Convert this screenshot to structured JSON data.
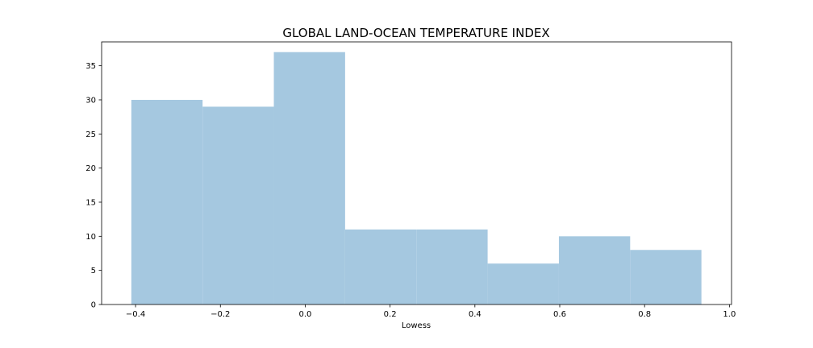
{
  "chart_data": {
    "type": "bar",
    "title": "GLOBAL LAND-OCEAN TEMPERATURE INDEX",
    "xlabel": "Lowess",
    "ylabel": "",
    "bins": [
      {
        "x0": -0.41,
        "x1": -0.242,
        "count": 30
      },
      {
        "x0": -0.242,
        "x1": -0.074,
        "count": 29
      },
      {
        "x0": -0.074,
        "x1": 0.094,
        "count": 37
      },
      {
        "x0": 0.094,
        "x1": 0.262,
        "count": 11
      },
      {
        "x0": 0.262,
        "x1": 0.43,
        "count": 11
      },
      {
        "x0": 0.43,
        "x1": 0.598,
        "count": 6
      },
      {
        "x0": 0.598,
        "x1": 0.766,
        "count": 10
      },
      {
        "x0": 0.766,
        "x1": 0.934,
        "count": 8
      }
    ],
    "xlim": [
      -0.48,
      1.005
    ],
    "ylim": [
      0,
      38.5
    ],
    "xticks": [
      -0.4,
      -0.2,
      0.0,
      0.2,
      0.4,
      0.6,
      0.8,
      1.0
    ],
    "xtick_labels": [
      "−0.4",
      "−0.2",
      "0.0",
      "0.2",
      "0.4",
      "0.6",
      "0.8",
      "1.0"
    ],
    "yticks": [
      0,
      5,
      10,
      15,
      20,
      25,
      30,
      35
    ],
    "ytick_labels": [
      "0",
      "5",
      "10",
      "15",
      "20",
      "25",
      "30",
      "35"
    ],
    "grid": false,
    "bar_color": "#a5c8e0"
  }
}
